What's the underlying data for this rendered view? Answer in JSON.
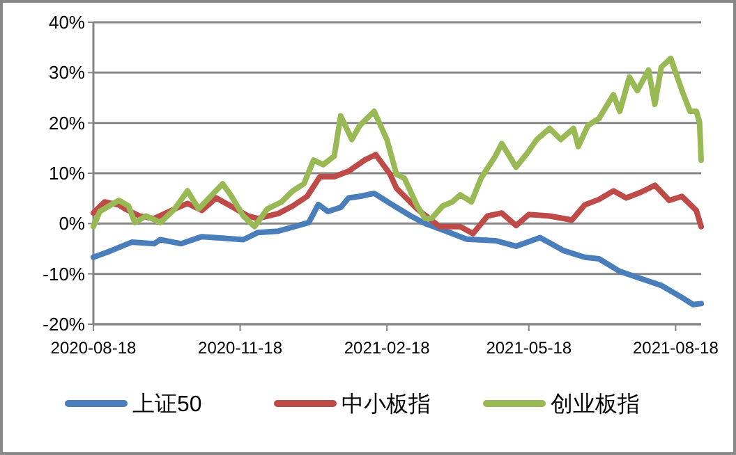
{
  "chart_data": {
    "type": "line",
    "xlim": [
      "2020-08-18",
      "2021-09-03"
    ],
    "xticks": [
      "2020-08-18",
      "2020-11-18",
      "2021-02-18",
      "2021-05-18",
      "2021-08-18"
    ],
    "ylim": [
      -20,
      40
    ],
    "yticks": [
      {
        "value": -20,
        "label": "-20%"
      },
      {
        "value": -10,
        "label": "-10%"
      },
      {
        "value": 0,
        "label": "0%"
      },
      {
        "value": 10,
        "label": "10%"
      },
      {
        "value": 20,
        "label": "20%"
      },
      {
        "value": 30,
        "label": "30%"
      },
      {
        "value": 40,
        "label": "40%"
      }
    ],
    "grid": "y",
    "legend": "bottom",
    "marker": "none",
    "line_style": "solid",
    "series": [
      {
        "name": "上证50",
        "color": "#4a7ebb",
        "x": [
          "2020-08-18",
          "2020-08-29",
          "2020-09-11",
          "2020-09-25",
          "2020-09-29",
          "2020-10-12",
          "2020-10-25",
          "2020-11-07",
          "2020-11-20",
          "2020-11-29",
          "2020-12-12",
          "2020-12-21",
          "2020-12-31",
          "2021-01-06",
          "2021-01-12",
          "2021-01-20",
          "2021-01-25",
          "2021-02-01",
          "2021-02-10",
          "2021-02-20",
          "2021-03-05",
          "2021-03-14",
          "2021-03-27",
          "2021-04-09",
          "2021-04-27",
          "2021-05-10",
          "2021-05-25",
          "2021-06-09",
          "2021-06-22",
          "2021-07-01",
          "2021-07-14",
          "2021-07-27",
          "2021-08-09",
          "2021-08-22",
          "2021-08-29",
          "2021-09-03"
        ],
        "values": [
          -6.7,
          -5.4,
          -3.7,
          -4,
          -3.2,
          -4,
          -2.6,
          -2.9,
          -3.2,
          -1.8,
          -1.5,
          -0.7,
          0.2,
          3.8,
          2.4,
          3.2,
          5.1,
          5.4,
          6,
          4,
          1.5,
          0,
          -1.5,
          -3.1,
          -3.4,
          -4.5,
          -2.8,
          -5.4,
          -6.7,
          -7,
          -9.5,
          -10.9,
          -12.3,
          -14.7,
          -16.1,
          -15.9
        ]
      },
      {
        "name": "中小板指",
        "color": "#be4b48",
        "x": [
          "2020-08-18",
          "2020-08-25",
          "2020-09-03",
          "2020-09-07",
          "2020-09-16",
          "2020-09-25",
          "2020-10-08",
          "2020-10-16",
          "2020-10-25",
          "2020-11-03",
          "2020-11-12",
          "2020-11-23",
          "2020-11-29",
          "2020-12-12",
          "2020-12-21",
          "2020-12-30",
          "2021-01-07",
          "2021-01-16",
          "2021-01-25",
          "2021-02-04",
          "2021-02-11",
          "2021-02-20",
          "2021-02-24",
          "2021-03-09",
          "2021-03-23",
          "2021-04-05",
          "2021-04-13",
          "2021-04-22",
          "2021-05-01",
          "2021-05-10",
          "2021-05-18",
          "2021-05-31",
          "2021-06-14",
          "2021-06-22",
          "2021-07-01",
          "2021-07-10",
          "2021-07-18",
          "2021-07-27",
          "2021-08-05",
          "2021-08-14",
          "2021-08-22",
          "2021-08-31",
          "2021-09-03"
        ],
        "values": [
          2.1,
          4.3,
          3.7,
          2.9,
          1.5,
          1,
          2.9,
          4,
          2.6,
          5.1,
          3.5,
          1.5,
          1,
          2,
          3.5,
          5.4,
          9.3,
          9.3,
          10.4,
          12.6,
          13.7,
          9.8,
          7,
          2.9,
          -0.6,
          -0.6,
          -2,
          1.5,
          2.1,
          -0.4,
          1.8,
          1.5,
          0.7,
          3.7,
          4.8,
          6.5,
          5.1,
          6.2,
          7.6,
          4.6,
          5.4,
          2.6,
          -0.6
        ]
      },
      {
        "name": "创业板指",
        "color": "#98b954",
        "x": [
          "2020-08-18",
          "2020-08-22",
          "2020-08-29",
          "2020-09-03",
          "2020-09-09",
          "2020-09-13",
          "2020-09-20",
          "2020-09-29",
          "2020-10-08",
          "2020-10-16",
          "2020-10-23",
          "2020-11-07",
          "2020-11-12",
          "2020-11-20",
          "2020-11-27",
          "2020-12-05",
          "2020-12-14",
          "2020-12-21",
          "2020-12-28",
          "2021-01-03",
          "2021-01-09",
          "2021-01-16",
          "2021-01-20",
          "2021-01-27",
          "2021-02-01",
          "2021-02-10",
          "2021-02-18",
          "2021-02-24",
          "2021-03-01",
          "2021-03-09",
          "2021-03-14",
          "2021-03-18",
          "2021-03-25",
          "2021-03-31",
          "2021-04-05",
          "2021-04-12",
          "2021-04-18",
          "2021-04-27",
          "2021-05-01",
          "2021-05-10",
          "2021-05-17",
          "2021-05-23",
          "2021-05-31",
          "2021-06-07",
          "2021-06-15",
          "2021-06-18",
          "2021-06-24",
          "2021-07-01",
          "2021-07-10",
          "2021-07-14",
          "2021-07-20",
          "2021-07-25",
          "2021-08-01",
          "2021-08-05",
          "2021-08-09",
          "2021-08-15",
          "2021-08-22",
          "2021-08-27",
          "2021-08-31",
          "2021-09-02",
          "2021-09-03"
        ],
        "values": [
          -0.6,
          2.4,
          3.7,
          4.6,
          3.5,
          0.2,
          1.5,
          0.2,
          2.9,
          6.5,
          2.9,
          7.9,
          5.7,
          1.5,
          -0.6,
          2.9,
          4.3,
          6.5,
          7.9,
          12.6,
          11.7,
          13.4,
          21.4,
          16.7,
          19.5,
          22.3,
          16.7,
          9.8,
          9,
          3.5,
          1,
          1,
          3.5,
          4.3,
          5.7,
          4.3,
          9,
          13.4,
          15.9,
          11.2,
          14,
          16.7,
          18.9,
          16.7,
          18.9,
          15.3,
          19.5,
          20.9,
          25.6,
          22.3,
          29.1,
          26.4,
          30.5,
          23.7,
          31.1,
          32.8,
          26.4,
          22.3,
          22.3,
          20.1,
          12.6
        ]
      }
    ]
  }
}
